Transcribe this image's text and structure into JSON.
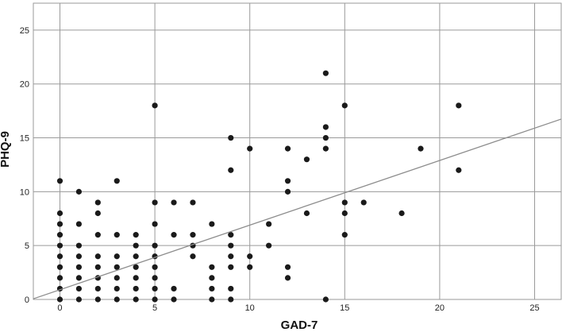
{
  "chart_data": {
    "type": "scatter",
    "title": "",
    "xlabel": "GAD-7",
    "ylabel": "PHQ-9",
    "xlim": [
      -1.4,
      26.4
    ],
    "ylim": [
      0,
      27.5
    ],
    "xticks": [
      0,
      5,
      10,
      15,
      20,
      25
    ],
    "yticks": [
      0,
      5,
      10,
      15,
      20,
      25
    ],
    "grid": true,
    "point_color": "#1a1a1a",
    "gridline_color": "#9a9a9a",
    "fit_line_color": "#8c8c8c",
    "fit_line": {
      "intercept": 0.9,
      "slope": 0.6
    },
    "points": [
      [
        0,
        11
      ],
      [
        0,
        8
      ],
      [
        0,
        7
      ],
      [
        0,
        6
      ],
      [
        0,
        5
      ],
      [
        0,
        4
      ],
      [
        0,
        3
      ],
      [
        0,
        2
      ],
      [
        0,
        1
      ],
      [
        0,
        0
      ],
      [
        1,
        10
      ],
      [
        1,
        7
      ],
      [
        1,
        5
      ],
      [
        1,
        4
      ],
      [
        1,
        3
      ],
      [
        1,
        2
      ],
      [
        1,
        1
      ],
      [
        1,
        0
      ],
      [
        2,
        9
      ],
      [
        2,
        8
      ],
      [
        2,
        6
      ],
      [
        2,
        4
      ],
      [
        2,
        3
      ],
      [
        2,
        2
      ],
      [
        2,
        1
      ],
      [
        2,
        0
      ],
      [
        3,
        11
      ],
      [
        3,
        6
      ],
      [
        3,
        4
      ],
      [
        3,
        3
      ],
      [
        3,
        2
      ],
      [
        3,
        1
      ],
      [
        3,
        0
      ],
      [
        4,
        6
      ],
      [
        4,
        5
      ],
      [
        4,
        4
      ],
      [
        4,
        3
      ],
      [
        4,
        2
      ],
      [
        4,
        1
      ],
      [
        4,
        0
      ],
      [
        5,
        18
      ],
      [
        5,
        9
      ],
      [
        5,
        7
      ],
      [
        5,
        5
      ],
      [
        5,
        4
      ],
      [
        5,
        3
      ],
      [
        5,
        2
      ],
      [
        5,
        1
      ],
      [
        5,
        0
      ],
      [
        6,
        9
      ],
      [
        6,
        6
      ],
      [
        6,
        1
      ],
      [
        6,
        0
      ],
      [
        7,
        9
      ],
      [
        7,
        6
      ],
      [
        7,
        5
      ],
      [
        7,
        4
      ],
      [
        8,
        7
      ],
      [
        8,
        3
      ],
      [
        8,
        2
      ],
      [
        8,
        1
      ],
      [
        8,
        0
      ],
      [
        9,
        15
      ],
      [
        9,
        12
      ],
      [
        9,
        6
      ],
      [
        9,
        5
      ],
      [
        9,
        4
      ],
      [
        9,
        3
      ],
      [
        9,
        1
      ],
      [
        9,
        0
      ],
      [
        10,
        14
      ],
      [
        10,
        4
      ],
      [
        10,
        3
      ],
      [
        11,
        7
      ],
      [
        11,
        5
      ],
      [
        12,
        14
      ],
      [
        12,
        11
      ],
      [
        12,
        10
      ],
      [
        12,
        3
      ],
      [
        12,
        2
      ],
      [
        13,
        13
      ],
      [
        13,
        8
      ],
      [
        14,
        21
      ],
      [
        14,
        16
      ],
      [
        14,
        15
      ],
      [
        14,
        14
      ],
      [
        14,
        0
      ],
      [
        15,
        18
      ],
      [
        15,
        9
      ],
      [
        15,
        8
      ],
      [
        15,
        6
      ],
      [
        16,
        9
      ],
      [
        18,
        8
      ],
      [
        19,
        14
      ],
      [
        21,
        18
      ],
      [
        21,
        12
      ]
    ]
  }
}
